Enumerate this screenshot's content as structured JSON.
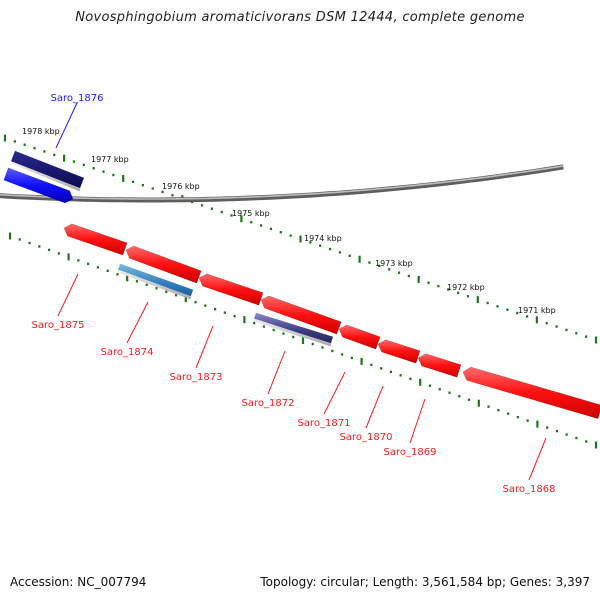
{
  "title": "Novosphingobium aromaticivorans DSM 12444, complete genome",
  "footer": {
    "accession": "Accession: NC_007794",
    "summary": "Topology: circular; Length: 3,561,584 bp; Genes: 3,397"
  },
  "colors": {
    "forward_strand_gene": "#1a1aff",
    "forward_strand_selected": "#10106a",
    "reverse_strand_gene": "#ff1a1a",
    "other_feature": "#2f7fbf",
    "other_feature_alt": "#3a3a80",
    "backbone": "#888888",
    "tick": "#1a7a1a"
  },
  "kbp_ticks": [
    "1978 kbp",
    "1977 kbp",
    "1976 kbp",
    "1975 kbp",
    "1974 kbp",
    "1973 kbp",
    "1972 kbp",
    "1971 kbp"
  ],
  "genes": [
    {
      "label": "Saro_1876",
      "strand": "forward"
    },
    {
      "label": "Saro_1875",
      "strand": "reverse"
    },
    {
      "label": "Saro_1874",
      "strand": "reverse"
    },
    {
      "label": "Saro_1873",
      "strand": "reverse"
    },
    {
      "label": "Saro_1872",
      "strand": "reverse"
    },
    {
      "label": "Saro_1871",
      "strand": "reverse"
    },
    {
      "label": "Saro_1870",
      "strand": "reverse"
    },
    {
      "label": "Saro_1869",
      "strand": "reverse"
    },
    {
      "label": "Saro_1868",
      "strand": "reverse"
    }
  ]
}
